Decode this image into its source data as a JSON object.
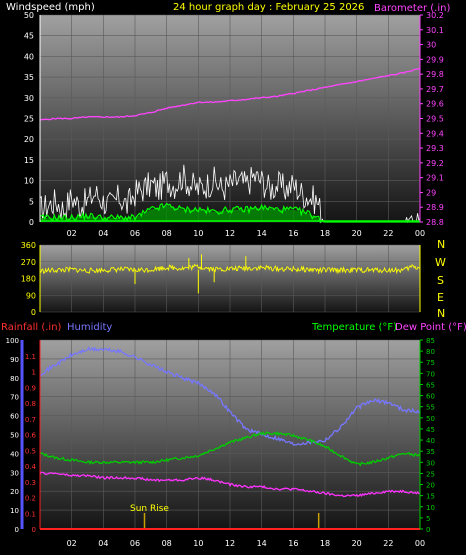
{
  "colors": {
    "background": "#000000",
    "panel_top": "#9a9a9a",
    "panel_bottom": "#111111",
    "grid": "#5a5a5a",
    "wind": "#ffffff",
    "gust_fill": "#009a00",
    "wind_avg": "#00ff00",
    "barometer": "#ff44ff",
    "direction": "#ffff00",
    "rain": "#ff2020",
    "humidity": "#7777ff",
    "temperature": "#00cc00",
    "dewpoint": "#ff33ff",
    "sun": "#c8a000",
    "title": "#ffff00"
  },
  "chart_data": [
    {
      "type": "line",
      "name": "wind_barometer",
      "title": "24 hour graph day : February 25 2026",
      "ylabel_left": "Windspeed (mph)",
      "ylabel_right": "Barometer (.in)",
      "x_ticks": [
        "02",
        "04",
        "06",
        "08",
        "10",
        "12",
        "14",
        "16",
        "18",
        "20",
        "22",
        "00"
      ],
      "xlim": [
        0,
        24
      ],
      "ylim_left": [
        0,
        50
      ],
      "y_ticks_left": [
        "0",
        "5",
        "10",
        "15",
        "20",
        "25",
        "30",
        "35",
        "40",
        "45",
        "50"
      ],
      "ylim_right": [
        28.8,
        30.2
      ],
      "y_ticks_right": [
        "28.8",
        "28.9",
        "29",
        "29.1",
        "29.2",
        "29.3",
        "29.4",
        "29.5",
        "29.6",
        "29.7",
        "29.8",
        "29.9",
        "30",
        "30.1",
        "30.2"
      ],
      "series": [
        {
          "key": "gust",
          "x": [
            0,
            0.5,
            1,
            1.5,
            2,
            2.5,
            3,
            3.5,
            4,
            4.5,
            5,
            5.5,
            6,
            6.5,
            7,
            7.5,
            8,
            8.5,
            9,
            9.5,
            10,
            10.5,
            11,
            11.5,
            12,
            12.5,
            13,
            13.5,
            14,
            14.5,
            15,
            15.5,
            16,
            16.5,
            17,
            17.5,
            18,
            19,
            20,
            21,
            22,
            23,
            24
          ],
          "values": [
            3,
            4,
            5,
            3,
            6,
            4,
            5,
            7,
            5,
            4,
            6,
            4,
            7,
            8,
            9,
            8,
            10,
            9,
            11,
            9,
            8,
            9,
            10,
            8,
            9,
            10,
            9,
            11,
            10,
            8,
            9,
            8,
            9,
            7,
            6,
            5,
            0,
            0,
            0,
            0,
            0,
            0,
            1
          ]
        },
        {
          "key": "wind_avg",
          "x": [
            0,
            1,
            2,
            3,
            4,
            5,
            6,
            6.5,
            7,
            7.5,
            8,
            8.5,
            9,
            10,
            11,
            12,
            13,
            14,
            15,
            16,
            17,
            17.5,
            18,
            19,
            20,
            21,
            22,
            23,
            24
          ],
          "values": [
            1,
            1,
            1,
            1.5,
            1,
            1,
            1,
            2,
            3,
            3.5,
            4,
            3.5,
            3,
            3,
            2.5,
            3,
            3,
            3.5,
            3,
            3,
            2,
            1,
            0,
            0,
            0,
            0,
            0,
            0,
            0
          ]
        },
        {
          "key": "barometer",
          "x": [
            0,
            1,
            2,
            3,
            4,
            5,
            6,
            7,
            8,
            9,
            10,
            11,
            12,
            13,
            14,
            15,
            16,
            17,
            18,
            19,
            20,
            21,
            22,
            23,
            24
          ],
          "values": [
            29.49,
            29.5,
            29.5,
            29.51,
            29.51,
            29.51,
            29.52,
            29.54,
            29.57,
            29.59,
            29.61,
            29.61,
            29.62,
            29.63,
            29.64,
            29.65,
            29.67,
            29.69,
            29.71,
            29.73,
            29.75,
            29.77,
            29.79,
            29.81,
            29.84
          ]
        }
      ]
    },
    {
      "type": "scatter",
      "name": "wind_direction",
      "ylim": [
        0,
        360
      ],
      "y_ticks": [
        "0",
        "90",
        "180",
        "270",
        "360"
      ],
      "compass": [
        "N",
        "W",
        "S",
        "E",
        "N"
      ],
      "series": [
        {
          "key": "direction",
          "x": [
            0,
            1,
            2,
            3,
            4,
            5,
            6,
            7,
            8,
            9,
            10,
            11,
            12,
            13,
            14,
            15,
            16,
            17,
            18,
            19,
            20,
            21,
            22,
            23,
            23.5,
            24
          ],
          "values": [
            220,
            225,
            228,
            222,
            225,
            230,
            225,
            228,
            240,
            235,
            245,
            230,
            232,
            235,
            238,
            232,
            230,
            228,
            225,
            225,
            225,
            225,
            225,
            225,
            245,
            235
          ]
        }
      ]
    },
    {
      "type": "line",
      "name": "rain_humidity_temp",
      "ylabel_left_1": "Rainfall (.in)",
      "ylabel_left_2": "Humidity",
      "ylabel_right_1": "Temperature (°F)",
      "ylabel_right_2": "Dew Point (°F)",
      "x_ticks": [
        "02",
        "04",
        "06",
        "08",
        "10",
        "12",
        "14",
        "16",
        "18",
        "20",
        "22",
        "00"
      ],
      "xlim": [
        0,
        24
      ],
      "humidity_ticks": [
        "0",
        "10",
        "20",
        "30",
        "40",
        "50",
        "60",
        "70",
        "80",
        "90",
        "100"
      ],
      "rain_ticks": [
        "0",
        "0.1",
        "0.2",
        "0.3",
        "0.4",
        "0.5",
        "0.6",
        "0.7",
        "0.8",
        "0.9",
        "1",
        "1.1"
      ],
      "temp_ticks": [
        "0",
        "5",
        "10",
        "15",
        "20",
        "25",
        "30",
        "35",
        "40",
        "45",
        "50",
        "55",
        "60",
        "65",
        "70",
        "75",
        "80",
        "85"
      ],
      "ylim_humidity": [
        0,
        100
      ],
      "ylim_rain": [
        0,
        1.2
      ],
      "ylim_temp": [
        0,
        85
      ],
      "annotation": "Sun Rise",
      "sunrise_x": 6.6,
      "sunset_x": 17.6,
      "series": [
        {
          "key": "humidity",
          "x": [
            0,
            1,
            2,
            3,
            4,
            5,
            6,
            7,
            8,
            9,
            10,
            11,
            12,
            13,
            14,
            15,
            16,
            17,
            18,
            19,
            20,
            21,
            22,
            23,
            24
          ],
          "values": [
            82,
            87,
            92,
            95,
            95,
            94,
            91,
            87,
            83,
            80,
            77,
            72,
            62,
            53,
            50,
            48,
            45,
            46,
            47,
            54,
            64,
            68,
            67,
            63,
            62
          ]
        },
        {
          "key": "temperature",
          "x": [
            0,
            1,
            2,
            3,
            4,
            5,
            6,
            7,
            8,
            9,
            10,
            11,
            12,
            13,
            14,
            15,
            16,
            17,
            18,
            19,
            20,
            21,
            22,
            23,
            24
          ],
          "values": [
            34,
            32,
            31,
            30,
            30,
            30,
            30,
            30,
            31,
            32,
            33,
            36,
            39,
            41,
            43,
            43,
            42,
            40,
            37,
            33,
            29,
            30,
            32,
            34,
            33
          ]
        },
        {
          "key": "dewpoint",
          "x": [
            0,
            1,
            2,
            3,
            4,
            5,
            6,
            7,
            8,
            9,
            10,
            11,
            12,
            13,
            14,
            15,
            16,
            17,
            18,
            19,
            20,
            21,
            22,
            23,
            24
          ],
          "values": [
            25,
            25,
            24,
            24,
            23,
            23,
            23,
            22,
            22,
            22,
            23,
            22,
            20,
            19,
            19,
            18,
            18,
            17,
            16,
            15,
            15,
            16,
            17,
            17,
            16
          ]
        },
        {
          "key": "rain",
          "x": [
            0,
            24
          ],
          "values": [
            0,
            0
          ]
        }
      ]
    }
  ]
}
